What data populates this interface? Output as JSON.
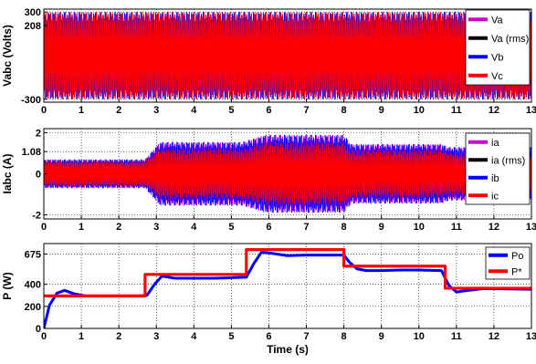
{
  "chart_data": [
    {
      "type": "line",
      "title": "",
      "xlabel": "",
      "ylabel": "Vabc (Volts)",
      "xlim": [
        0,
        13
      ],
      "ylim": [
        -320,
        320
      ],
      "xticks": [
        "0",
        "1",
        "2",
        "3",
        "4",
        "5",
        "6",
        "7",
        "8",
        "9",
        "10",
        "11",
        "12",
        "13"
      ],
      "yticks": [
        {
          "value": 300,
          "label": "300"
        },
        {
          "value": 208,
          "label": "208"
        },
        {
          "value": -300,
          "label": "-300"
        }
      ],
      "grid": true,
      "legend_position": "top-right",
      "series": [
        {
          "name": "Va",
          "color": "#cc00cc",
          "kind": "sine",
          "amplitude": 300,
          "envelope": [
            [
              0,
              300
            ],
            [
              13,
              300
            ]
          ]
        },
        {
          "name": "Va (rms)",
          "color": "#000000",
          "kind": "constant",
          "value": 208
        },
        {
          "name": "Vb",
          "color": "#0000ff",
          "kind": "sine",
          "amplitude": 300,
          "envelope": [
            [
              0,
              300
            ],
            [
              13,
              300
            ]
          ]
        },
        {
          "name": "Vc",
          "color": "#ff0000",
          "kind": "sine",
          "amplitude": 300,
          "envelope": [
            [
              0,
              300
            ],
            [
              13,
              300
            ]
          ]
        }
      ]
    },
    {
      "type": "line",
      "title": "",
      "xlabel": "",
      "ylabel": "Iabc (A)",
      "xlim": [
        0,
        13
      ],
      "ylim": [
        -2.2,
        2.2
      ],
      "xticks": [
        "0",
        "1",
        "2",
        "3",
        "4",
        "5",
        "6",
        "7",
        "8",
        "9",
        "10",
        "11",
        "12",
        "13"
      ],
      "yticks": [
        {
          "value": 2,
          "label": "2"
        },
        {
          "value": 1.08,
          "label": "1.08"
        },
        {
          "value": 0,
          "label": "0"
        },
        {
          "value": -2,
          "label": "-2"
        }
      ],
      "grid": true,
      "legend_position": "top-right",
      "series": [
        {
          "name": "ia",
          "color": "#cc00cc",
          "kind": "sine",
          "envelope": [
            [
              0,
              0.7
            ],
            [
              2.7,
              0.7
            ],
            [
              3.1,
              1.55
            ],
            [
              5.3,
              1.55
            ],
            [
              5.9,
              1.9
            ],
            [
              8,
              1.9
            ],
            [
              8.2,
              1.45
            ],
            [
              10.6,
              1.45
            ],
            [
              10.8,
              1.3
            ],
            [
              13,
              1.3
            ]
          ]
        },
        {
          "name": "ia (rms)",
          "color": "#000000",
          "kind": "constant",
          "value": 1.08
        },
        {
          "name": "ib",
          "color": "#0000ff",
          "kind": "sine",
          "envelope": [
            [
              0,
              0.7
            ],
            [
              2.7,
              0.7
            ],
            [
              3.1,
              1.55
            ],
            [
              5.3,
              1.55
            ],
            [
              5.9,
              1.9
            ],
            [
              8,
              1.9
            ],
            [
              8.2,
              1.45
            ],
            [
              10.6,
              1.45
            ],
            [
              10.8,
              1.3
            ],
            [
              13,
              1.3
            ]
          ]
        },
        {
          "name": "ic",
          "color": "#ff0000",
          "kind": "sine",
          "envelope": [
            [
              0,
              0.6
            ],
            [
              2.7,
              0.6
            ],
            [
              3.1,
              1.2
            ],
            [
              5.3,
              1.2
            ],
            [
              5.9,
              1.5
            ],
            [
              8,
              1.5
            ],
            [
              8.2,
              1.15
            ],
            [
              10.6,
              1.15
            ],
            [
              10.8,
              1.0
            ],
            [
              13,
              1.0
            ]
          ]
        }
      ]
    },
    {
      "type": "line",
      "title": "",
      "xlabel": "Time (s)",
      "ylabel": "P (W)",
      "xlim": [
        0,
        13
      ],
      "ylim": [
        0,
        770
      ],
      "xticks": [
        "0",
        "1",
        "2",
        "3",
        "4",
        "5",
        "6",
        "7",
        "8",
        "9",
        "10",
        "11",
        "12",
        "13"
      ],
      "yticks": [
        {
          "value": 675,
          "label": "675"
        },
        {
          "value": 400,
          "label": "400"
        },
        {
          "value": 200,
          "label": "200"
        },
        {
          "value": 0,
          "label": "0"
        }
      ],
      "grid": true,
      "legend_position": "top-right",
      "series": [
        {
          "name": "Po",
          "color": "#0000ff",
          "kind": "points",
          "x": [
            0,
            0.15,
            0.35,
            0.55,
            0.8,
            1.1,
            1.5,
            2.0,
            2.5,
            2.75,
            2.95,
            3.15,
            3.5,
            4.0,
            4.5,
            5.0,
            5.4,
            5.6,
            5.8,
            6.0,
            6.5,
            7.0,
            7.5,
            8.0,
            8.15,
            8.35,
            8.6,
            9.0,
            9.5,
            10.0,
            10.6,
            10.8,
            11.0,
            11.3,
            11.7,
            12.0,
            13.0
          ],
          "y": [
            0,
            210,
            320,
            345,
            315,
            295,
            295,
            295,
            295,
            300,
            400,
            475,
            455,
            455,
            455,
            460,
            465,
            590,
            690,
            685,
            660,
            665,
            665,
            665,
            600,
            540,
            525,
            525,
            530,
            530,
            525,
            390,
            330,
            345,
            360,
            360,
            355
          ]
        },
        {
          "name": "P*",
          "color": "#ff0000",
          "kind": "step",
          "x": [
            0,
            2.7,
            2.7,
            5.4,
            5.4,
            8.0,
            8.0,
            10.7,
            10.7,
            13.0
          ],
          "y": [
            295,
            295,
            490,
            490,
            715,
            715,
            565,
            565,
            365,
            365
          ]
        }
      ]
    }
  ]
}
